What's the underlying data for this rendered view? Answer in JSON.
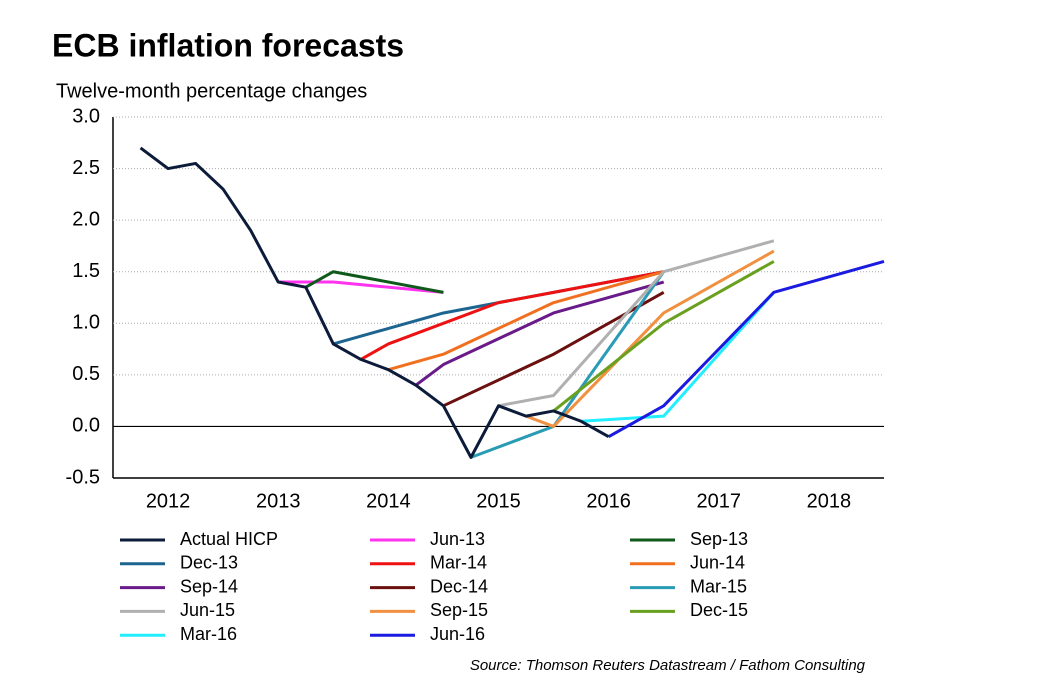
{
  "chart_data": {
    "type": "line",
    "title": "ECB inflation forecasts",
    "subtitle": "Twelve-month percentage changes",
    "source": "Source: Thomson Reuters Datastream / Fathom Consulting",
    "xlim": [
      2012,
      2019
    ],
    "xticks": [
      {
        "value": 2012.5,
        "label": "2012"
      },
      {
        "value": 2013.5,
        "label": "2013"
      },
      {
        "value": 2014.5,
        "label": "2014"
      },
      {
        "value": 2015.5,
        "label": "2015"
      },
      {
        "value": 2016.5,
        "label": "2016"
      },
      {
        "value": 2017.5,
        "label": "2017"
      },
      {
        "value": 2018.5,
        "label": "2018"
      }
    ],
    "ylim": [
      -0.5,
      3.0
    ],
    "yticks": [
      {
        "value": -0.5,
        "label": "-0.5"
      },
      {
        "value": 0,
        "label": "0.0"
      },
      {
        "value": 0.5,
        "label": "0.5"
      },
      {
        "value": 1,
        "label": "1.0"
      },
      {
        "value": 1.5,
        "label": "1.5"
      },
      {
        "value": 2,
        "label": "2.0"
      },
      {
        "value": 2.5,
        "label": "2.5"
      },
      {
        "value": 3,
        "label": "3.0"
      }
    ],
    "grid": true,
    "series": [
      {
        "name": "Actual HICP",
        "color": "#0d1b3a",
        "x": [
          2012.25,
          2012.5,
          2012.75,
          2013.0,
          2013.25,
          2013.5,
          2013.75,
          2014.0,
          2014.25,
          2014.5,
          2014.75,
          2015.0,
          2015.25,
          2015.5,
          2015.75,
          2016.0,
          2016.25,
          2016.5
        ],
        "values": [
          2.7,
          2.5,
          2.55,
          2.3,
          1.9,
          1.4,
          1.35,
          0.8,
          0.65,
          0.55,
          0.4,
          0.2,
          -0.3,
          0.2,
          0.1,
          0.15,
          0.05,
          -0.1
        ]
      },
      {
        "name": "Jun-13",
        "color": "#ff33ee",
        "x": [
          2013.5,
          2014.0,
          2015.0
        ],
        "values": [
          1.4,
          1.4,
          1.3
        ]
      },
      {
        "name": "Sep-13",
        "color": "#0f5a1a",
        "x": [
          2013.75,
          2014.0,
          2015.0
        ],
        "values": [
          1.35,
          1.5,
          1.3
        ]
      },
      {
        "name": "Dec-13",
        "color": "#1d6491",
        "x": [
          2014.0,
          2015.0,
          2016.0,
          2017.0
        ],
        "values": [
          0.8,
          1.1,
          1.3,
          1.5
        ]
      },
      {
        "name": "Mar-14",
        "color": "#ee1111",
        "x": [
          2014.25,
          2014.5,
          2015.0,
          2015.5,
          2016.0,
          2016.5,
          2017.0
        ],
        "values": [
          0.65,
          0.8,
          1.0,
          1.2,
          1.3,
          1.4,
          1.5
        ]
      },
      {
        "name": "Jun-14",
        "color": "#f07020",
        "x": [
          2014.5,
          2015.0,
          2016.0,
          2017.0
        ],
        "values": [
          0.55,
          0.7,
          1.2,
          1.5
        ]
      },
      {
        "name": "Sep-14",
        "color": "#6a1b8a",
        "x": [
          2014.75,
          2015.0,
          2016.0,
          2017.0
        ],
        "values": [
          0.4,
          0.6,
          1.1,
          1.4
        ]
      },
      {
        "name": "Dec-14",
        "color": "#6b0f0f",
        "x": [
          2015.0,
          2016.0,
          2017.0
        ],
        "values": [
          0.2,
          0.7,
          1.3
        ]
      },
      {
        "name": "Mar-15",
        "color": "#2a9bb5",
        "x": [
          2015.25,
          2016.0,
          2017.0
        ],
        "values": [
          -0.3,
          0.0,
          1.5
        ]
      },
      {
        "name": "Jun-15",
        "color": "#b0b0b0",
        "x": [
          2015.5,
          2016.0,
          2017.0,
          2018.0
        ],
        "values": [
          0.2,
          0.3,
          1.5,
          1.8
        ]
      },
      {
        "name": "Sep-15",
        "color": "#f09040",
        "x": [
          2015.75,
          2016.0,
          2017.0,
          2018.0
        ],
        "values": [
          0.1,
          0.0,
          1.1,
          1.7
        ]
      },
      {
        "name": "Dec-15",
        "color": "#6aa020",
        "x": [
          2016.0,
          2017.0,
          2018.0
        ],
        "values": [
          0.15,
          1.0,
          1.6
        ]
      },
      {
        "name": "Mar-16",
        "color": "#22eeff",
        "x": [
          2016.25,
          2017.0,
          2018.0
        ],
        "values": [
          0.05,
          0.1,
          1.3
        ]
      },
      {
        "name": "Jun-16",
        "color": "#1a1ae0",
        "x": [
          2016.5,
          2017.0,
          2018.0,
          2019.0
        ],
        "values": [
          -0.1,
          0.2,
          1.3,
          1.6
        ]
      }
    ]
  }
}
